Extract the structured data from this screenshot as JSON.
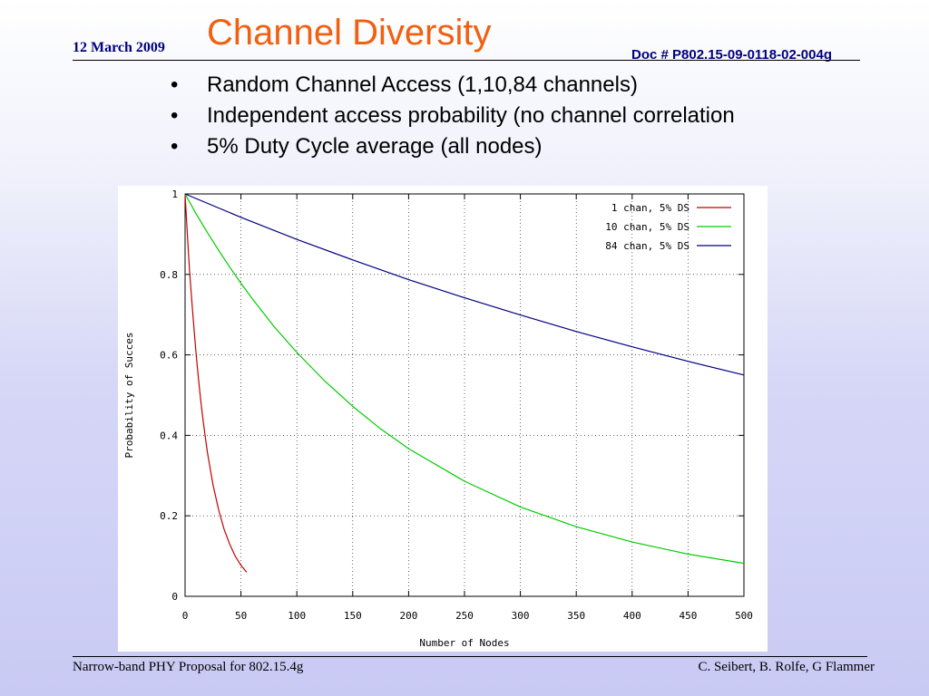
{
  "header": {
    "date": "12 March 2009",
    "title": "Channel Diversity",
    "doc_number": "Doc # P802.15-09-0118-02-004g"
  },
  "bullets": [
    "Random Channel Access (1,10,84 channels)",
    "Independent access probability (no channel correlation",
    "5% Duty Cycle average (all nodes)"
  ],
  "bullet_marker": "•",
  "footer": {
    "left": "Narrow-band PHY Proposal for 802.15.4g",
    "right": "C. Seibert, B. Rolfe, G Flammer"
  },
  "chart_data": {
    "type": "line",
    "xlabel": "Number of Nodes",
    "ylabel": "Probability of Succes",
    "xlim": [
      0,
      500
    ],
    "ylim": [
      0,
      1
    ],
    "x_ticks": [
      "0",
      "50",
      "100",
      "150",
      "200",
      "250",
      "300",
      "350",
      "400",
      "450",
      "500"
    ],
    "y_ticks": [
      "0",
      "0.2",
      "0.4",
      "0.6",
      "0.8",
      "1"
    ],
    "grid": true,
    "legend_position": "top-right",
    "series": [
      {
        "name": "1 chan, 5% DS",
        "color": "#c00000",
        "x": [
          0,
          2,
          4,
          6,
          8,
          10,
          12,
          14,
          16,
          18,
          20,
          25,
          30,
          35,
          40,
          45,
          50,
          55
        ],
        "y": [
          1.0,
          0.9,
          0.81,
          0.735,
          0.663,
          0.599,
          0.54,
          0.488,
          0.44,
          0.397,
          0.358,
          0.277,
          0.215,
          0.166,
          0.129,
          0.099,
          0.077,
          0.06
        ]
      },
      {
        "name": "10 chan, 5% DS",
        "color": "#00cc00",
        "x": [
          0,
          10,
          20,
          30,
          40,
          50,
          60,
          80,
          100,
          125,
          150,
          175,
          200,
          250,
          300,
          350,
          400,
          450,
          500
        ],
        "y": [
          1.0,
          0.95,
          0.904,
          0.86,
          0.818,
          0.778,
          0.74,
          0.669,
          0.606,
          0.535,
          0.472,
          0.416,
          0.367,
          0.286,
          0.222,
          0.173,
          0.135,
          0.105,
          0.082
        ]
      },
      {
        "name": "84 chan, 5% DS",
        "color": "#000080",
        "x": [
          0,
          50,
          100,
          150,
          200,
          250,
          300,
          350,
          400,
          450,
          500
        ],
        "y": [
          1.0,
          0.942,
          0.887,
          0.836,
          0.787,
          0.742,
          0.699,
          0.658,
          0.62,
          0.584,
          0.55
        ]
      }
    ]
  }
}
